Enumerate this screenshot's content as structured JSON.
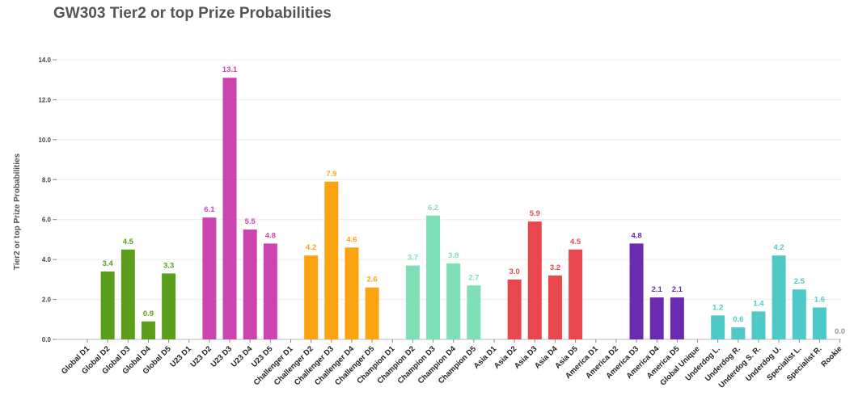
{
  "chart_data": {
    "type": "bar",
    "title": "GW303 Tier2 or top Prize Probabilities",
    "xlabel": "",
    "ylabel": "Tier2 or top Prize Probabilities",
    "ylim": [
      0,
      14
    ],
    "yticks": [
      "0.0",
      "2.0",
      "4.0",
      "6.0",
      "8.0",
      "10.0",
      "12.0",
      "14.0"
    ],
    "grid": true,
    "legend": "none",
    "categories": [
      "Global D1",
      "Global D2",
      "Global D3",
      "Global D4",
      "Global D5",
      "U23 D1",
      "U23 D2",
      "U23 D3",
      "U23 D4",
      "U23 D5",
      "Challenger D1",
      "Challenger D2",
      "Challenger D3",
      "Challenger D4",
      "Challenger D5",
      "Champion D1",
      "Champion D2",
      "Champion D3",
      "Champion D4",
      "Champion D5",
      "Asia D1",
      "Asia D2",
      "Asia D3",
      "Asia D4",
      "Asia D5",
      "America D1",
      "America D2",
      "America D3",
      "America D4",
      "America D5",
      "Global Unique",
      "Underdog L.",
      "Underdog R.",
      "Underdog S. R.",
      "Underdog U.",
      "Specialist L.",
      "Specialist R.",
      "Rookie"
    ],
    "values": [
      null,
      3.4,
      4.5,
      0.9,
      3.3,
      null,
      6.1,
      13.1,
      5.5,
      4.8,
      null,
      4.2,
      7.9,
      4.6,
      2.6,
      null,
      3.7,
      6.2,
      3.8,
      2.7,
      null,
      3.0,
      5.9,
      3.2,
      4.5,
      null,
      null,
      4.8,
      2.1,
      2.1,
      null,
      1.2,
      0.6,
      1.4,
      4.2,
      2.5,
      1.6,
      0.0
    ],
    "value_labels": [
      "",
      "3.4",
      "4.5",
      "0.9",
      "3.3",
      "",
      "6.1",
      "13.1",
      "5.5",
      "4.8",
      "",
      "4.2",
      "7.9",
      "4.6",
      "2.6",
      "",
      "3.7",
      "6.2",
      "3.8",
      "2.7",
      "",
      "3.0",
      "5.9",
      "3.2",
      "4.5",
      "",
      "",
      "4.8",
      "2.1",
      "2.1",
      "",
      "1.2",
      "0.6",
      "1.4",
      "4.2",
      "2.5",
      "1.6",
      "0.0"
    ],
    "colors": [
      "#5a9e1c",
      "#5a9e1c",
      "#5a9e1c",
      "#5a9e1c",
      "#5a9e1c",
      "#cc44b0",
      "#cc44b0",
      "#cc44b0",
      "#cc44b0",
      "#cc44b0",
      "#fca312",
      "#fca312",
      "#fca312",
      "#fca312",
      "#fca312",
      "#7fe0b8",
      "#7fe0b8",
      "#7fe0b8",
      "#7fe0b8",
      "#7fe0b8",
      "#e8474e",
      "#e8474e",
      "#e8474e",
      "#e8474e",
      "#e8474e",
      "#6a2bb0",
      "#6a2bb0",
      "#6a2bb0",
      "#6a2bb0",
      "#6a2bb0",
      "#4fc8c8",
      "#4fc8c8",
      "#4fc8c8",
      "#4fc8c8",
      "#4fc8c8",
      "#4fc8c8",
      "#4fc8c8",
      "#999999"
    ]
  }
}
